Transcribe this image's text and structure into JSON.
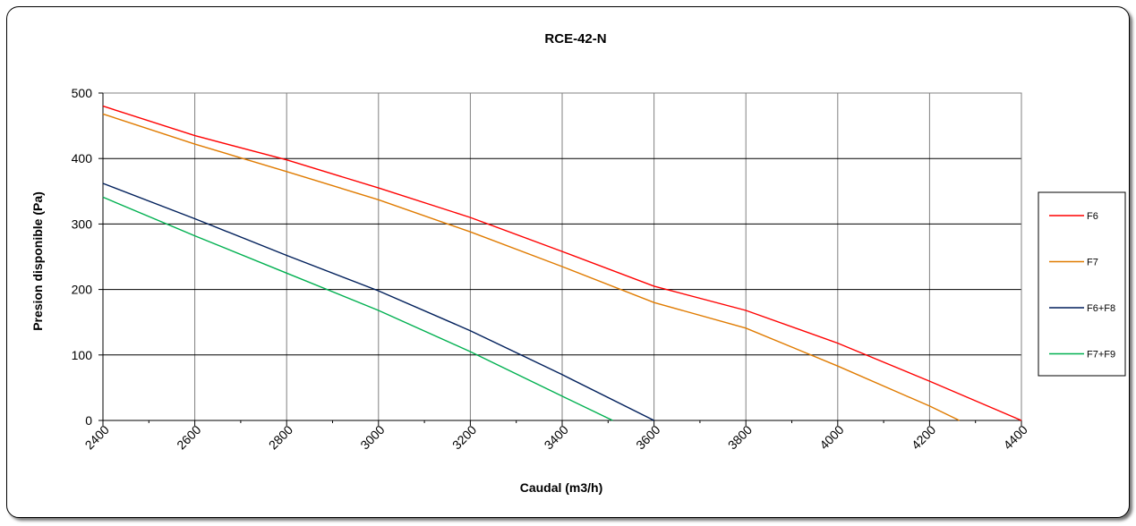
{
  "chart_data": {
    "type": "line",
    "title": "RCE-42-N",
    "xlabel": "Caudal (m3/h)",
    "ylabel": "Presion disponible (Pa)",
    "xlim": [
      2400,
      4400
    ],
    "ylim": [
      0,
      500
    ],
    "x_ticks": [
      2400,
      2600,
      2800,
      3000,
      3200,
      3400,
      3600,
      3800,
      4000,
      4200,
      4400
    ],
    "y_ticks": [
      0,
      100,
      200,
      300,
      400,
      500
    ],
    "x_tick_labels": [
      "2400",
      "2600",
      "2800",
      "3000",
      "3200",
      "3400",
      "3600",
      "3800",
      "4000",
      "4200",
      "4400"
    ],
    "y_tick_labels": [
      "0",
      "100",
      "200",
      "300",
      "400",
      "500"
    ],
    "grid": true,
    "legend_position": "right",
    "series": [
      {
        "name": "F6",
        "color": "#ff0000",
        "points": [
          [
            2400,
            480
          ],
          [
            2600,
            435
          ],
          [
            2800,
            398
          ],
          [
            3000,
            355
          ],
          [
            3200,
            310
          ],
          [
            3400,
            258
          ],
          [
            3600,
            205
          ],
          [
            3800,
            168
          ],
          [
            4000,
            118
          ],
          [
            4200,
            60
          ],
          [
            4400,
            0
          ]
        ]
      },
      {
        "name": "F7",
        "color": "#e07b00",
        "points": [
          [
            2400,
            468
          ],
          [
            2600,
            422
          ],
          [
            2800,
            380
          ],
          [
            3000,
            337
          ],
          [
            3200,
            288
          ],
          [
            3400,
            235
          ],
          [
            3600,
            180
          ],
          [
            3800,
            141
          ],
          [
            4000,
            83
          ],
          [
            4200,
            22
          ],
          [
            4265,
            0
          ]
        ]
      },
      {
        "name": "F6+F8",
        "color": "#001f5b",
        "points": [
          [
            2400,
            362
          ],
          [
            2600,
            308
          ],
          [
            2800,
            252
          ],
          [
            3000,
            198
          ],
          [
            3200,
            137
          ],
          [
            3400,
            70
          ],
          [
            3600,
            0
          ]
        ]
      },
      {
        "name": "F7+F9",
        "color": "#00b050",
        "points": [
          [
            2400,
            341
          ],
          [
            2600,
            282
          ],
          [
            2800,
            225
          ],
          [
            3000,
            168
          ],
          [
            3200,
            105
          ],
          [
            3400,
            37
          ],
          [
            3510,
            0
          ]
        ]
      }
    ]
  }
}
